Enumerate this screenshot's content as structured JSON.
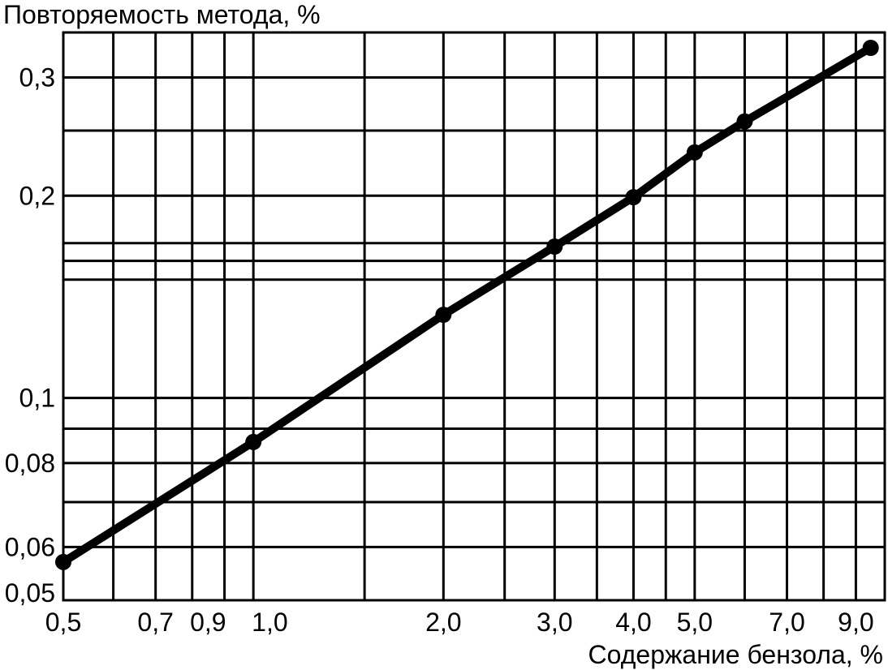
{
  "chart_data": {
    "type": "line",
    "title": "",
    "ylabel": "Повторяемость метода, %",
    "xlabel": "Содержание бензола, %",
    "x_scale": "log",
    "y_scale": "log",
    "xlim": [
      0.5,
      10.0
    ],
    "ylim": [
      0.05,
      0.35
    ],
    "grid": true,
    "x_gridlines": [
      0.5,
      0.6,
      0.7,
      0.8,
      0.9,
      1.0,
      1.5,
      2.0,
      2.5,
      3.0,
      3.5,
      4.0,
      4.5,
      5.0,
      6.0,
      7.0,
      8.0,
      9.0,
      10.0
    ],
    "y_gridlines": [
      0.05,
      0.06,
      0.07,
      0.08,
      0.09,
      0.1,
      0.15,
      0.16,
      0.17,
      0.2,
      0.25,
      0.3
    ],
    "x_ticks": [
      "0,5",
      "0,7",
      "0,9",
      "1,0",
      "2,0",
      "3,0",
      "4,0",
      "5,0",
      "7,0",
      "9,0"
    ],
    "x_tick_values": [
      0.5,
      0.7,
      0.9,
      1.0,
      2.0,
      3.0,
      4.0,
      5.0,
      7.0,
      9.0
    ],
    "y_ticks": [
      "0,3",
      "0,2",
      "0,1",
      "0,08",
      "0,06",
      "0,05"
    ],
    "y_tick_values": [
      0.3,
      0.2,
      0.1,
      0.08,
      0.06,
      0.05
    ],
    "series": [
      {
        "x": [
          0.5,
          1.0,
          2.0,
          3.0,
          4.0,
          5.0,
          6.0,
          9.5
        ],
        "y": [
          0.057,
          0.086,
          0.133,
          0.168,
          0.199,
          0.232,
          0.258,
          0.332
        ]
      }
    ]
  }
}
